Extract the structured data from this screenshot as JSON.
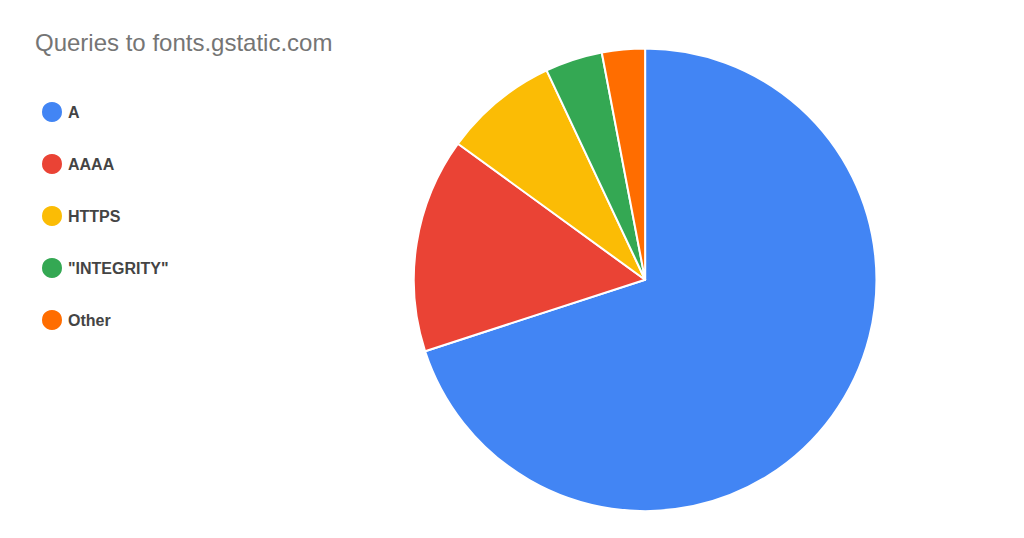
{
  "chart_data": {
    "type": "pie",
    "title": "Queries to fonts.gstatic.com",
    "categories": [
      "A",
      "AAAA",
      "HTTPS",
      "\"INTEGRITY\"",
      "Other"
    ],
    "values": [
      70.0,
      15.0,
      8.0,
      4.0,
      3.0
    ],
    "colors": [
      "#4285F4",
      "#EA4335",
      "#FBBC05",
      "#34A853",
      "#FF6D00"
    ],
    "legend": "upper left"
  }
}
